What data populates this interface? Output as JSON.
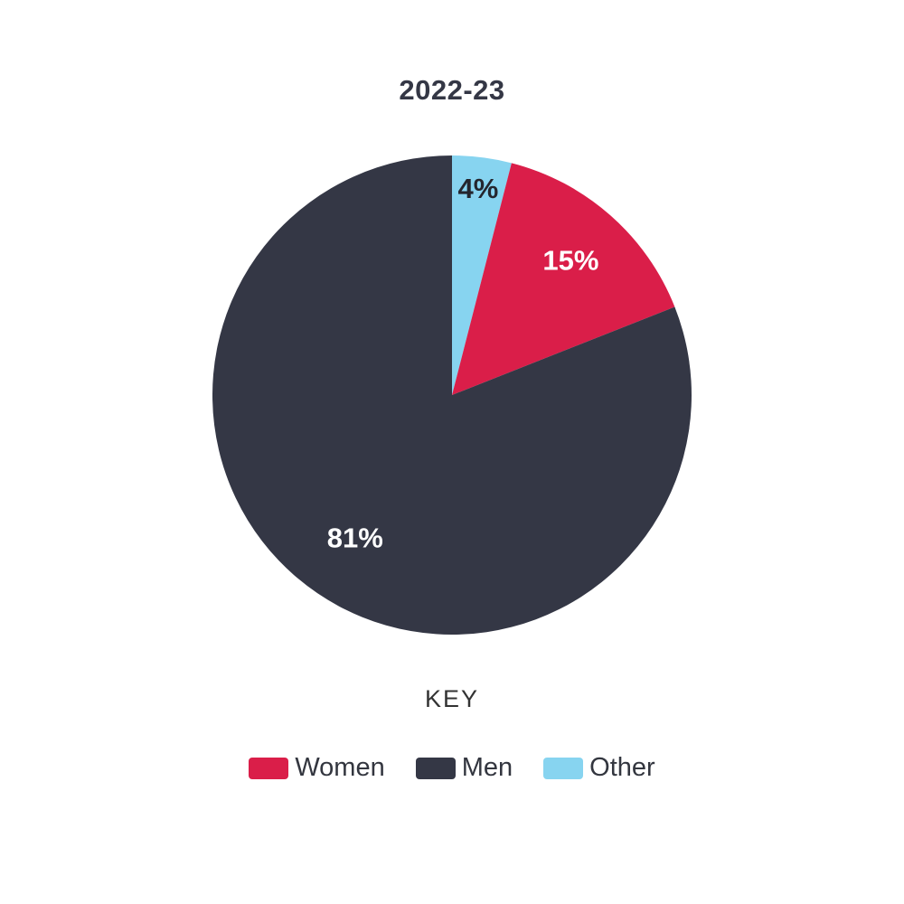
{
  "chart_data": {
    "type": "pie",
    "title": "2022-23",
    "start_angle_deg": 0,
    "direction": "clockwise",
    "slices": [
      {
        "label": "Other",
        "value": 4,
        "percent_label": "4%",
        "color": "#87D4F0",
        "label_color": "#24262E"
      },
      {
        "label": "Women",
        "value": 15,
        "percent_label": "15%",
        "color": "#DA1E49",
        "label_color": "#FFFFFF"
      },
      {
        "label": "Men",
        "value": 81,
        "percent_label": "81%",
        "color": "#343745",
        "label_color": "#FFFFFF"
      }
    ],
    "legend": {
      "heading": "KEY",
      "position": "bottom",
      "items": [
        {
          "label": "Women",
          "color": "#DA1E49"
        },
        {
          "label": "Men",
          "color": "#343745"
        },
        {
          "label": "Other",
          "color": "#87D4F0"
        }
      ]
    }
  }
}
